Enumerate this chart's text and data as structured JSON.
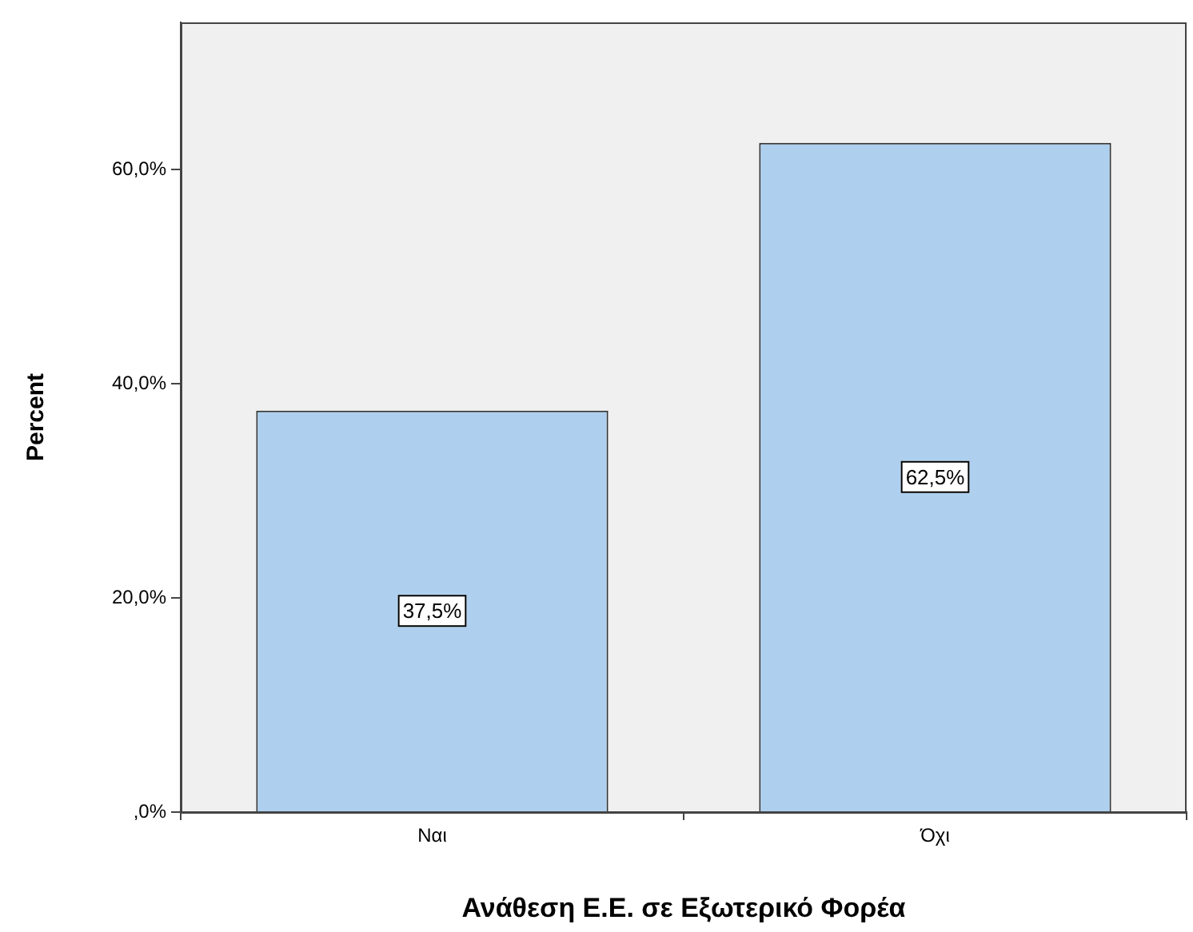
{
  "chart_data": {
    "type": "bar",
    "xlabel": "Ανάθεση Ε.Ε. σε Εξωτερικό Φορέα",
    "ylabel": "Percent",
    "categories": [
      "Ναι",
      "Όχι"
    ],
    "values": [
      37.5,
      62.5
    ],
    "value_labels": [
      "37,5%",
      "62,5%"
    ],
    "color": "#aed0ee",
    "ylim": [
      0,
      73.75
    ],
    "yticks": [
      {
        "value": 0,
        "label": ",0%"
      },
      {
        "value": 20,
        "label": "20,0%"
      },
      {
        "value": 40,
        "label": "40,0%"
      },
      {
        "value": 60,
        "label": "60,0%"
      }
    ],
    "legend": false
  }
}
